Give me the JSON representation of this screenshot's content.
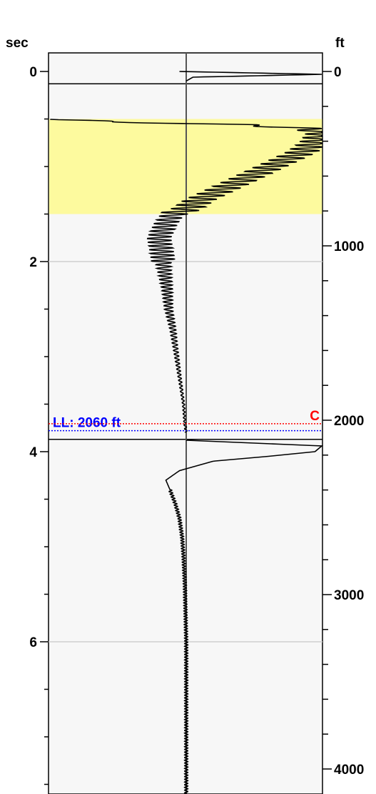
{
  "chart_data": {
    "type": "line",
    "title": "",
    "left_axis": {
      "unit_label": "sec",
      "range": [
        -0.2,
        7.6
      ],
      "major_ticks": [
        0,
        2,
        4,
        6
      ],
      "minor_step": 0.5,
      "tick_labels": [
        "0",
        "2",
        "4",
        "6"
      ],
      "direction": "down"
    },
    "right_axis": {
      "unit_label": "ft",
      "range": [
        -78,
        4078
      ],
      "major_ticks": [
        0,
        1000,
        2000,
        3000,
        4000
      ],
      "minor_step": 200,
      "tick_labels": [
        "0",
        "1000",
        "2000",
        "3000",
        "4000"
      ],
      "direction": "down"
    },
    "grid": true,
    "horizontal_gridlines_sec": [
      2,
      6
    ],
    "highlight_band": {
      "from_sec": 0.5,
      "to_sec": 1.5,
      "color": "#fdfa9e"
    },
    "segment_separators_sec": [
      0.13,
      3.87
    ],
    "markers": [
      {
        "label": "LL: 2060 ft",
        "depth_ft": 2060,
        "color": "#0000ff",
        "style": "dotted",
        "label_side": "left"
      },
      {
        "label": "C",
        "depth_ft": 2020,
        "color": "#ff0000",
        "style": "dotted",
        "label_side": "right"
      }
    ],
    "trace": {
      "name": "",
      "color": "#000000",
      "x_units": "relative amplitude (-1 to 1)",
      "segment_1": {
        "points": [
          [
            0.0,
            -0.05
          ],
          [
            0.03,
            1.0
          ],
          [
            0.06,
            0.05
          ],
          [
            0.1,
            0.0
          ]
        ]
      },
      "segment_2": {
        "points": [
          [
            0.5,
            -1.0
          ],
          [
            0.53,
            -0.55
          ],
          [
            0.56,
            0.4
          ],
          [
            0.6,
            0.9
          ],
          [
            0.65,
            1.0
          ],
          [
            0.75,
            0.95
          ],
          [
            0.85,
            0.85
          ],
          [
            0.95,
            0.7
          ],
          [
            1.05,
            0.55
          ],
          [
            1.15,
            0.4
          ],
          [
            1.25,
            0.25
          ],
          [
            1.35,
            0.1
          ],
          [
            1.45,
            0.0
          ],
          [
            1.5,
            -0.1
          ],
          [
            1.6,
            -0.15
          ],
          [
            1.75,
            -0.2
          ],
          [
            1.9,
            -0.18
          ],
          [
            2.1,
            -0.16
          ],
          [
            2.3,
            -0.14
          ],
          [
            2.5,
            -0.13
          ],
          [
            2.7,
            -0.1
          ],
          [
            2.9,
            -0.08
          ],
          [
            3.1,
            -0.06
          ],
          [
            3.3,
            -0.04
          ],
          [
            3.5,
            -0.02
          ],
          [
            3.7,
            -0.01
          ],
          [
            3.8,
            0.0
          ]
        ]
      },
      "segment_3": {
        "points": [
          [
            3.88,
            0.0
          ],
          [
            3.94,
            1.0
          ],
          [
            4.0,
            0.95
          ],
          [
            4.05,
            0.6
          ],
          [
            4.1,
            0.2
          ],
          [
            4.2,
            -0.05
          ],
          [
            4.3,
            -0.15
          ],
          [
            4.4,
            -0.12
          ],
          [
            4.55,
            -0.08
          ],
          [
            4.7,
            -0.05
          ],
          [
            4.9,
            -0.03
          ],
          [
            5.1,
            -0.02
          ],
          [
            5.4,
            -0.01
          ],
          [
            6.0,
            0.0
          ],
          [
            7.6,
            0.0
          ]
        ]
      }
    }
  }
}
